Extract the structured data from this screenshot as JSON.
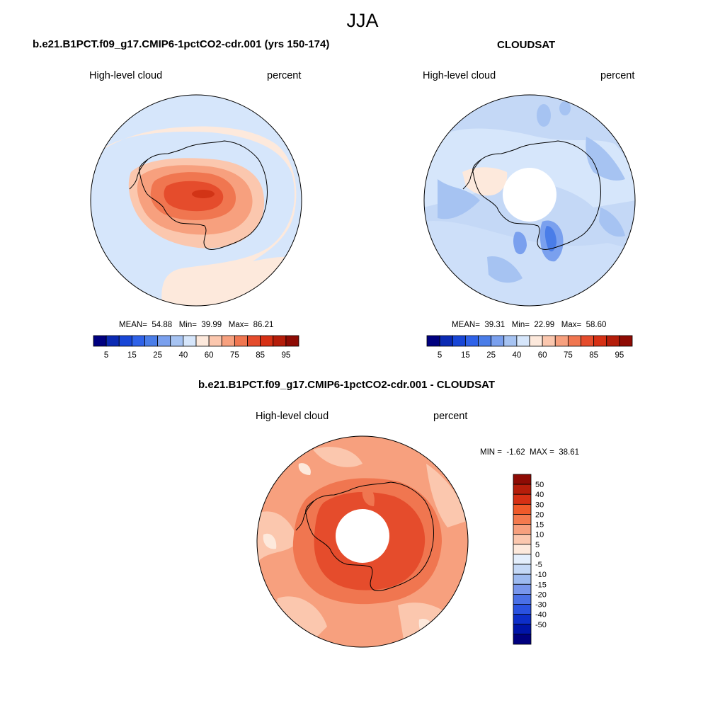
{
  "figure": {
    "season_title": "JJA",
    "panels": [
      {
        "id": "model",
        "title": "b.e21.B1PCT.f09_g17.CMIP6-1pctCO2-cdr.001 (yrs 150-174)",
        "variable_label": "High-level cloud",
        "units_label": "percent",
        "stats": {
          "mean_label": "MEAN=",
          "mean": "54.88",
          "min_label": "Min=",
          "min": "39.99",
          "max_label": "Max=",
          "max": "86.21"
        },
        "has_polar_gap": false
      },
      {
        "id": "obs",
        "title": "CLOUDSAT",
        "variable_label": "High-level cloud",
        "units_label": "percent",
        "stats": {
          "mean_label": "MEAN=",
          "mean": "39.31",
          "min_label": "Min=",
          "min": "22.99",
          "max_label": "Max=",
          "max": "58.60"
        },
        "has_polar_gap": true
      },
      {
        "id": "diff",
        "title": "b.e21.B1PCT.f09_g17.CMIP6-1pctCO2-cdr.001 - CLOUDSAT",
        "variable_label": "High-level cloud",
        "units_label": "percent",
        "stats": {
          "min_label": "MIN =",
          "min": "-1.62",
          "max_label": "MAX =",
          "max": "38.61"
        },
        "has_polar_gap": true
      }
    ]
  },
  "colorbars": {
    "absolute": {
      "orientation": "horizontal",
      "colors": [
        "#00007f",
        "#0b2ab3",
        "#1846d6",
        "#2f62e8",
        "#4a7de8",
        "#7aa0ee",
        "#a6c3f2",
        "#d6e6fb",
        "#fde9dc",
        "#fbc7ae",
        "#f7a07e",
        "#f07650",
        "#e54c2c",
        "#d63014",
        "#b51d0a",
        "#8e0b04"
      ],
      "tick_labels": [
        "5",
        "15",
        "25",
        "40",
        "60",
        "75",
        "85",
        "95"
      ]
    },
    "difference": {
      "orientation": "vertical",
      "colors": [
        "#8e0b04",
        "#b51d0a",
        "#d63014",
        "#f05a2a",
        "#f47a4e",
        "#f7a07e",
        "#fbc7ae",
        "#fde9dc",
        "#e3eefc",
        "#c4d8f6",
        "#9dbaf0",
        "#7896ec",
        "#4a70e6",
        "#2a52e0",
        "#0d2ec9",
        "#0014a8",
        "#00007f"
      ],
      "tick_labels": [
        "50",
        "40",
        "30",
        "20",
        "15",
        "10",
        "5",
        "0",
        "-5",
        "-10",
        "-15",
        "-20",
        "-30",
        "-40",
        "-50"
      ]
    }
  },
  "map_colors": {
    "ocean_light_blue": "#d6e6fb",
    "blue_mid": "#a6c3f2",
    "blue_deep": "#7aa0ee",
    "blue_dark": "#4a7de8",
    "peach_light": "#fde9dc",
    "peach": "#fbc7ae",
    "salmon": "#f7a07e",
    "orange": "#f07650",
    "red_orange": "#e54c2c",
    "outline": "#000000"
  }
}
